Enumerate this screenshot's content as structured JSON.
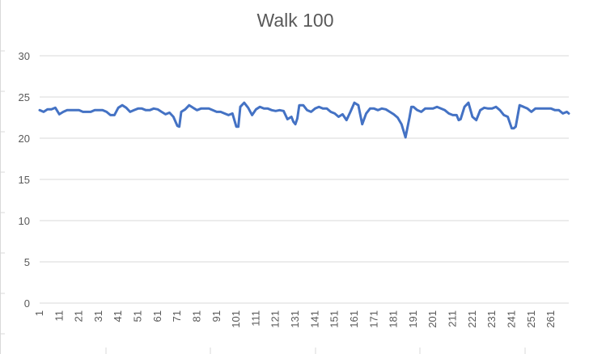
{
  "chart_data": {
    "type": "line",
    "title": "Walk 100",
    "xlabel": "",
    "ylabel": "",
    "ylim": [
      0,
      30
    ],
    "y_ticks": [
      "0",
      "5",
      "10",
      "15",
      "20",
      "25",
      "30"
    ],
    "x_ticks": [
      "1",
      "11",
      "21",
      "31",
      "41",
      "51",
      "61",
      "71",
      "81",
      "91",
      "101",
      "111",
      "121",
      "131",
      "141",
      "151",
      "161",
      "171",
      "181",
      "191",
      "201",
      "211",
      "221",
      "231",
      "241",
      "251",
      "261"
    ],
    "x_range": [
      1,
      270
    ],
    "grid": true,
    "legend": "none",
    "line_color": "#4472C4",
    "series": [
      {
        "x": [
          1,
          3,
          5,
          7,
          9,
          11,
          13,
          15,
          17,
          19,
          21,
          23,
          25,
          27,
          29,
          31,
          33,
          35,
          37,
          39,
          41,
          43,
          45,
          47,
          49,
          51,
          53,
          55,
          57,
          59,
          61,
          63,
          65,
          67,
          69,
          71,
          72,
          73,
          75,
          77,
          79,
          81,
          83,
          85,
          87,
          89,
          91,
          93,
          95,
          97,
          99,
          101,
          102,
          103,
          105,
          107,
          109,
          111,
          113,
          115,
          117,
          119,
          121,
          123,
          125,
          127,
          129,
          130,
          131,
          132,
          133,
          135,
          137,
          139,
          141,
          143,
          145,
          147,
          149,
          151,
          153,
          155,
          157,
          159,
          161,
          163,
          165,
          167,
          169,
          171,
          173,
          175,
          177,
          179,
          181,
          183,
          185,
          187,
          189,
          190,
          191,
          193,
          195,
          197,
          199,
          201,
          203,
          205,
          207,
          209,
          211,
          213,
          214,
          215,
          217,
          219,
          221,
          223,
          225,
          227,
          229,
          231,
          233,
          235,
          237,
          239,
          241,
          242,
          243,
          245,
          247,
          249,
          251,
          253,
          255,
          257,
          259,
          261,
          263,
          265,
          267,
          269,
          270
        ],
        "y": [
          23.4,
          23.2,
          23.5,
          23.5,
          23.7,
          22.9,
          23.2,
          23.4,
          23.4,
          23.4,
          23.4,
          23.2,
          23.2,
          23.2,
          23.4,
          23.4,
          23.4,
          23.2,
          22.8,
          22.8,
          23.7,
          24.0,
          23.7,
          23.2,
          23.4,
          23.6,
          23.6,
          23.4,
          23.4,
          23.6,
          23.5,
          23.2,
          22.9,
          23.1,
          22.6,
          21.5,
          21.4,
          23.2,
          23.5,
          24.0,
          23.7,
          23.4,
          23.6,
          23.6,
          23.6,
          23.4,
          23.2,
          23.2,
          23.0,
          22.8,
          23.0,
          21.4,
          21.4,
          23.8,
          24.3,
          23.7,
          22.8,
          23.5,
          23.8,
          23.6,
          23.6,
          23.4,
          23.3,
          23.4,
          23.3,
          22.3,
          22.6,
          22.0,
          21.7,
          22.4,
          24.0,
          24.0,
          23.4,
          23.2,
          23.6,
          23.8,
          23.6,
          23.6,
          23.2,
          23.0,
          22.6,
          22.9,
          22.2,
          23.2,
          24.3,
          24.0,
          21.7,
          23.0,
          23.6,
          23.6,
          23.4,
          23.6,
          23.5,
          23.2,
          22.9,
          22.5,
          21.7,
          20.1,
          22.5,
          23.8,
          23.8,
          23.4,
          23.2,
          23.6,
          23.6,
          23.6,
          23.8,
          23.6,
          23.4,
          23.0,
          22.8,
          22.8,
          22.2,
          22.3,
          23.8,
          24.3,
          22.6,
          22.2,
          23.4,
          23.7,
          23.6,
          23.6,
          23.8,
          23.4,
          22.8,
          22.6,
          21.2,
          21.2,
          21.4,
          24.0,
          23.8,
          23.6,
          23.2,
          23.6,
          23.6,
          23.6,
          23.6,
          23.6,
          23.4,
          23.4,
          23.0,
          23.2,
          23.0
        ]
      }
    ]
  }
}
